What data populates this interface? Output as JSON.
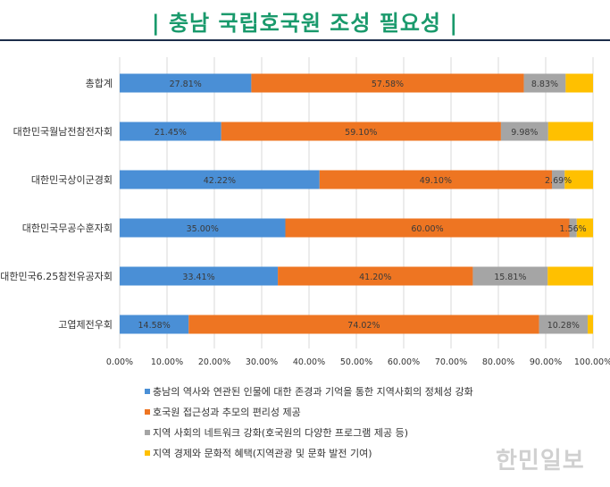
{
  "header": {
    "title": "| 충남 국립호국원 조성 필요성 |"
  },
  "watermark": "한민일보",
  "chart_data": {
    "type": "bar",
    "orientation": "horizontal",
    "stacked": true,
    "categories": [
      "총합계",
      "대한민국월남전참전자회",
      "대한민국상이군경회",
      "대한민국무공수훈자회",
      "대한민국6.25참전유공자회",
      "고엽제전우회"
    ],
    "series": [
      {
        "name": "충남의 역사와 연관된 인물에 대한 존경과 기억을 통한 지역사회의 정체성 강화",
        "color": "#4a8fd6",
        "values": [
          27.81,
          21.45,
          42.22,
          35.0,
          33.41,
          14.58
        ],
        "labels": [
          "27.81%",
          "21.45%",
          "42.22%",
          "35.00%",
          "33.41%",
          "14.58%"
        ]
      },
      {
        "name": "호국원 접근성과 추모의 편리성 제공",
        "color": "#ee7522",
        "values": [
          57.58,
          59.1,
          49.1,
          60.0,
          41.2,
          74.02
        ],
        "labels": [
          "57.58%",
          "59.10%",
          "49.10%",
          "60.00%",
          "41.20%",
          "74.02%"
        ]
      },
      {
        "name": "지역 사회의 네트워크 강화(호국원의 다양한 프로그램 제공 등)",
        "color": "#a5a5a5",
        "values": [
          8.83,
          9.98,
          2.69,
          1.56,
          15.81,
          10.28
        ],
        "labels": [
          "8.83%",
          "9.98%",
          "2.69%",
          "1.56%",
          "15.81%",
          "10.28%"
        ]
      },
      {
        "name": "지역 경제와 문화적 혜택(지역관광 및 문화 발전 기여)",
        "color": "#ffc000",
        "values": [
          5.78,
          9.47,
          5.99,
          3.44,
          9.58,
          1.12
        ]
      }
    ],
    "xlim": [
      0,
      100
    ],
    "xticks": [
      "0.00%",
      "10.00%",
      "20.00%",
      "30.00%",
      "40.00%",
      "50.00%",
      "60.00%",
      "70.00%",
      "80.00%",
      "90.00%",
      "100.00%"
    ],
    "grid": true,
    "legend_position": "bottom"
  }
}
